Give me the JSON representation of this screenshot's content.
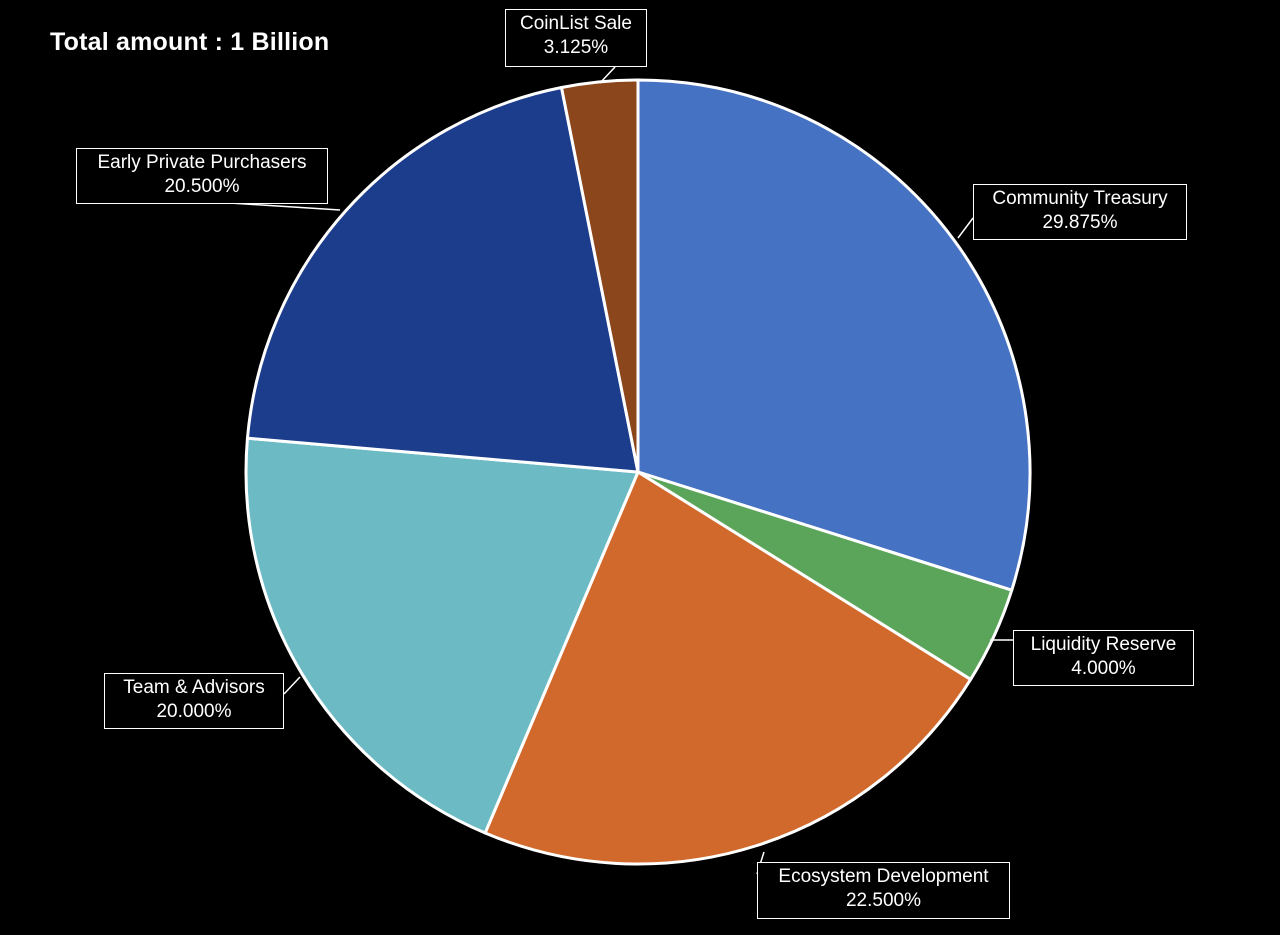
{
  "title": "Total amount : 1 Billion",
  "chart_data": {
    "type": "pie",
    "title": "Total amount : 1 Billion",
    "unit": "%",
    "slices": [
      {
        "label": "Community Treasury",
        "value": 29.875,
        "value_text": "29.875%",
        "color": "#4672C4"
      },
      {
        "label": "Liquidity Reserve",
        "value": 4.0,
        "value_text": "4.000%",
        "color": "#5BA55B"
      },
      {
        "label": "Ecosystem Development",
        "value": 22.5,
        "value_text": "22.500%",
        "color": "#D0692B"
      },
      {
        "label": "Team & Advisors",
        "value": 20.0,
        "value_text": "20.000%",
        "color": "#6CBBC4"
      },
      {
        "label": "Early Private Purchasers",
        "value": 20.5,
        "value_text": "20.500%",
        "color": "#1C3C8C"
      },
      {
        "label": "CoinList Sale",
        "value": 3.125,
        "value_text": "3.125%",
        "color": "#8B461C"
      }
    ],
    "start_angle": "12 o'clock",
    "direction": "clockwise",
    "slice_border_color": "#FFFFFF",
    "background": "#000000",
    "legend": "none",
    "data_labels": "callouts with leader lines"
  }
}
